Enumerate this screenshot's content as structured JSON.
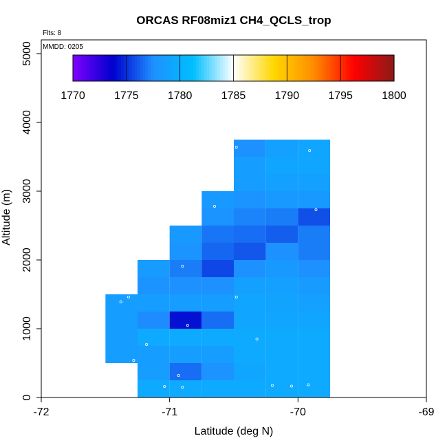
{
  "chart_data": {
    "type": "heatmap",
    "title": "ORCAS RF08miz1 CH4_QCLS_trop",
    "xlabel": "Latitude (deg N)",
    "ylabel": "Altitude (m)",
    "xlim": [
      -72,
      -69
    ],
    "ylim": [
      0,
      5200
    ],
    "xticks": [
      -72,
      -71,
      -70,
      -69
    ],
    "yticks": [
      0,
      1000,
      2000,
      3000,
      4000,
      5000
    ],
    "annotations": {
      "flights": "Flts: 8",
      "mmdd": "MMDD: 0205"
    },
    "colorbar": {
      "min": 1770,
      "max": 1800,
      "ticks": [
        1770,
        1775,
        1780,
        1785,
        1790,
        1795,
        1800
      ],
      "stops": [
        "#7f00ff",
        "#0000cd",
        "#1e90ff",
        "#00bfff",
        "#ffffff",
        "#ffd700",
        "#ff8c00",
        "#ff0000",
        "#8b1a1a"
      ]
    },
    "cell_width_deg": 0.25,
    "cell_height_m": 250,
    "cells": [
      {
        "x": -71.375,
        "bin": 2,
        "value": 1778.6
      },
      {
        "x": -71.375,
        "bin": 3,
        "value": 1778.6
      },
      {
        "x": -71.375,
        "bin": 4,
        "value": 1778.6
      },
      {
        "x": -71.375,
        "bin": 5,
        "value": 1778.6
      },
      {
        "x": -71.125,
        "bin": 0,
        "value": 1779.6
      },
      {
        "x": -71.125,
        "bin": 1,
        "value": 1778.6
      },
      {
        "x": -71.125,
        "bin": 2,
        "value": 1778.6
      },
      {
        "x": -71.125,
        "bin": 3,
        "value": 1779.6
      },
      {
        "x": -71.125,
        "bin": 4,
        "value": 1777.4
      },
      {
        "x": -71.125,
        "bin": 5,
        "value": 1778.6
      },
      {
        "x": -71.125,
        "bin": 6,
        "value": 1777.8
      },
      {
        "x": -71.125,
        "bin": 7,
        "value": 1778.4
      },
      {
        "x": -70.875,
        "bin": 0,
        "value": 1779.6
      },
      {
        "x": -70.875,
        "bin": 1,
        "value": 1776.6
      },
      {
        "x": -70.875,
        "bin": 2,
        "value": 1778.6
      },
      {
        "x": -70.875,
        "bin": 3,
        "value": 1779.6
      },
      {
        "x": -70.875,
        "bin": 4,
        "value": 1774.2
      },
      {
        "x": -70.875,
        "bin": 5,
        "value": 1778.6
      },
      {
        "x": -70.875,
        "bin": 6,
        "value": 1777.6
      },
      {
        "x": -70.875,
        "bin": 7,
        "value": 1777.0
      },
      {
        "x": -70.875,
        "bin": 8,
        "value": 1777.8
      },
      {
        "x": -70.875,
        "bin": 9,
        "value": 1778.2
      },
      {
        "x": -70.625,
        "bin": 0,
        "value": 1779.6
      },
      {
        "x": -70.625,
        "bin": 1,
        "value": 1777.8
      },
      {
        "x": -70.625,
        "bin": 2,
        "value": 1778.6
      },
      {
        "x": -70.625,
        "bin": 3,
        "value": 1779.6
      },
      {
        "x": -70.625,
        "bin": 4,
        "value": 1776.6
      },
      {
        "x": -70.625,
        "bin": 5,
        "value": 1778.6
      },
      {
        "x": -70.625,
        "bin": 6,
        "value": 1777.6
      },
      {
        "x": -70.625,
        "bin": 7,
        "value": 1775.6
      },
      {
        "x": -70.625,
        "bin": 8,
        "value": 1776.4
      },
      {
        "x": -70.625,
        "bin": 9,
        "value": 1776.8
      },
      {
        "x": -70.625,
        "bin": 10,
        "value": 1777.8
      },
      {
        "x": -70.625,
        "bin": 11,
        "value": 1778.2
      },
      {
        "x": -70.375,
        "bin": 0,
        "value": 1779.6
      },
      {
        "x": -70.375,
        "bin": 1,
        "value": 1779.2
      },
      {
        "x": -70.375,
        "bin": 2,
        "value": 1779.6
      },
      {
        "x": -70.375,
        "bin": 3,
        "value": 1779.6
      },
      {
        "x": -70.375,
        "bin": 4,
        "value": 1779.2
      },
      {
        "x": -70.375,
        "bin": 5,
        "value": 1779.2
      },
      {
        "x": -70.375,
        "bin": 6,
        "value": 1778.8
      },
      {
        "x": -70.375,
        "bin": 7,
        "value": 1777.6
      },
      {
        "x": -70.375,
        "bin": 8,
        "value": 1776.0
      },
      {
        "x": -70.375,
        "bin": 9,
        "value": 1776.6
      },
      {
        "x": -70.375,
        "bin": 10,
        "value": 1777.2
      },
      {
        "x": -70.375,
        "bin": 11,
        "value": 1777.8
      },
      {
        "x": -70.375,
        "bin": 12,
        "value": 1778.6
      },
      {
        "x": -70.375,
        "bin": 13,
        "value": 1778.6
      },
      {
        "x": -70.375,
        "bin": 14,
        "value": 1777.6
      },
      {
        "x": -70.125,
        "bin": 0,
        "value": 1779.6
      },
      {
        "x": -70.125,
        "bin": 1,
        "value": 1779.6
      },
      {
        "x": -70.125,
        "bin": 2,
        "value": 1779.6
      },
      {
        "x": -70.125,
        "bin": 3,
        "value": 1779.6
      },
      {
        "x": -70.125,
        "bin": 4,
        "value": 1779.2
      },
      {
        "x": -70.125,
        "bin": 5,
        "value": 1779.0
      },
      {
        "x": -70.125,
        "bin": 6,
        "value": 1778.8
      },
      {
        "x": -70.125,
        "bin": 7,
        "value": 1778.2
      },
      {
        "x": -70.125,
        "bin": 8,
        "value": 1777.6
      },
      {
        "x": -70.125,
        "bin": 9,
        "value": 1776.2
      },
      {
        "x": -70.125,
        "bin": 10,
        "value": 1777.0
      },
      {
        "x": -70.125,
        "bin": 11,
        "value": 1778.2
      },
      {
        "x": -70.125,
        "bin": 12,
        "value": 1778.8
      },
      {
        "x": -70.125,
        "bin": 13,
        "value": 1779.2
      },
      {
        "x": -70.125,
        "bin": 14,
        "value": 1778.8
      },
      {
        "x": -69.875,
        "bin": 0,
        "value": 1779.6
      },
      {
        "x": -69.875,
        "bin": 1,
        "value": 1779.6
      },
      {
        "x": -69.875,
        "bin": 2,
        "value": 1779.6
      },
      {
        "x": -69.875,
        "bin": 3,
        "value": 1779.6
      },
      {
        "x": -69.875,
        "bin": 4,
        "value": 1779.2
      },
      {
        "x": -69.875,
        "bin": 5,
        "value": 1778.8
      },
      {
        "x": -69.875,
        "bin": 6,
        "value": 1778.4
      },
      {
        "x": -69.875,
        "bin": 7,
        "value": 1777.6
      },
      {
        "x": -69.875,
        "bin": 8,
        "value": 1777.0
      },
      {
        "x": -69.875,
        "bin": 9,
        "value": 1777.0
      },
      {
        "x": -69.875,
        "bin": 10,
        "value": 1775.8
      },
      {
        "x": -69.875,
        "bin": 11,
        "value": 1778.2
      },
      {
        "x": -69.875,
        "bin": 12,
        "value": 1778.8
      },
      {
        "x": -69.875,
        "bin": 13,
        "value": 1779.2
      },
      {
        "x": -69.875,
        "bin": 14,
        "value": 1779.2
      }
    ],
    "points": [
      {
        "x": -71.38,
        "y": 1390
      },
      {
        "x": -71.32,
        "y": 1460
      },
      {
        "x": -71.18,
        "y": 770
      },
      {
        "x": -71.28,
        "y": 540
      },
      {
        "x": -70.93,
        "y": 320
      },
      {
        "x": -71.04,
        "y": 160
      },
      {
        "x": -70.9,
        "y": 150
      },
      {
        "x": -70.86,
        "y": 1050
      },
      {
        "x": -70.9,
        "y": 1910
      },
      {
        "x": -70.65,
        "y": 2780
      },
      {
        "x": -70.48,
        "y": 1460
      },
      {
        "x": -70.32,
        "y": 850
      },
      {
        "x": -70.2,
        "y": 175
      },
      {
        "x": -70.05,
        "y": 165
      },
      {
        "x": -69.92,
        "y": 185
      },
      {
        "x": -70.48,
        "y": 3640
      },
      {
        "x": -69.91,
        "y": 3590
      },
      {
        "x": -69.86,
        "y": 2730
      }
    ]
  }
}
